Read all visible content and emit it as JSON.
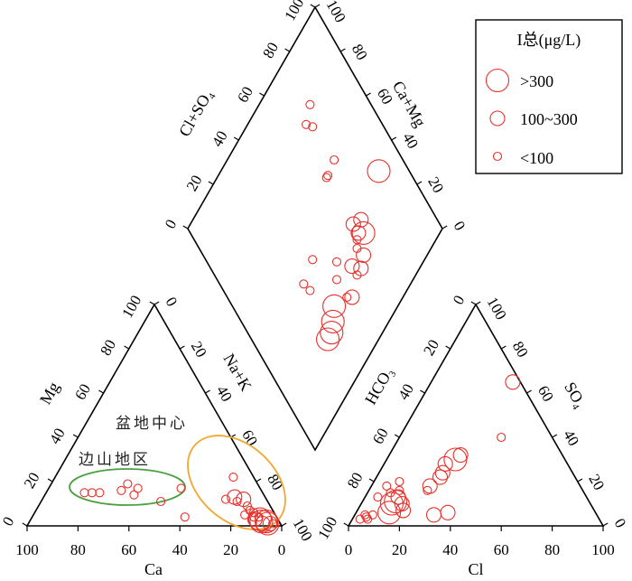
{
  "chart_data": {
    "type": "scatter",
    "subtype": "piper-diagram",
    "marker_color": "#e8302a",
    "left_triangle": {
      "left_axis_label": "Mg",
      "right_axis_label": "Na+K",
      "bottom_axis_label": "Ca",
      "ticks": [
        "0",
        "20",
        "40",
        "60",
        "80",
        "100"
      ]
    },
    "right_triangle": {
      "left_axis_label": "HCO₃",
      "right_axis_label": "SO₄",
      "bottom_axis_label": "Cl",
      "ticks": [
        "0",
        "20",
        "40",
        "60",
        "80",
        "100"
      ]
    },
    "diamond": {
      "left_axis_label": "Cl+SO₄",
      "right_axis_label": "Ca+Mg",
      "ticks": [
        "0",
        "20",
        "40",
        "60",
        "80",
        "100"
      ]
    },
    "groups": [
      {
        "name": "盆地中心",
        "ellipse_color": "#f0a830"
      },
      {
        "name": "边山地区",
        "ellipse_color": "#4aa040"
      }
    ],
    "legend": {
      "title": "I总(μg/L)",
      "items": [
        {
          "label": ">300",
          "size": "large"
        },
        {
          "label": "100~300",
          "size": "medium"
        },
        {
          "label": "<100",
          "size": "small"
        }
      ],
      "position": "top-right"
    },
    "cation_points": [
      {
        "ca": 85,
        "mg": 15,
        "size": "small"
      },
      {
        "ca": 82,
        "mg": 15,
        "size": "small"
      },
      {
        "ca": 79,
        "mg": 15,
        "size": "small"
      },
      {
        "ca": 71,
        "mg": 16,
        "size": "small"
      },
      {
        "ca": 70,
        "mg": 19,
        "size": "small"
      },
      {
        "ca": 65,
        "mg": 14,
        "size": "small"
      },
      {
        "ca": 65,
        "mg": 17,
        "size": "small"
      },
      {
        "ca": 53,
        "mg": 11,
        "size": "small"
      },
      {
        "ca": 48,
        "mg": 17,
        "size": "small"
      },
      {
        "ca": 40,
        "mg": 4,
        "size": "small"
      },
      {
        "ca": 30,
        "mg": 22,
        "size": "small"
      },
      {
        "ca": 28,
        "mg": 12,
        "size": "small"
      },
      {
        "ca": 25,
        "mg": 13,
        "size": "medium"
      },
      {
        "ca": 23,
        "mg": 11,
        "size": "small"
      },
      {
        "ca": 21,
        "mg": 12,
        "size": "medium"
      },
      {
        "ca": 18,
        "mg": 9,
        "size": "small"
      },
      {
        "ca": 17,
        "mg": 5,
        "size": "small"
      },
      {
        "ca": 16,
        "mg": 7,
        "size": "small"
      },
      {
        "ca": 14,
        "mg": 6,
        "size": "small"
      },
      {
        "ca": 13,
        "mg": 4,
        "size": "small"
      },
      {
        "ca": 12,
        "mg": 3,
        "size": "medium"
      },
      {
        "ca": 11,
        "mg": 4,
        "size": "small"
      },
      {
        "ca": 10,
        "mg": 3,
        "size": "large"
      },
      {
        "ca": 9,
        "mg": 2,
        "size": "large"
      },
      {
        "ca": 8,
        "mg": 1,
        "size": "medium"
      },
      {
        "ca": 7,
        "mg": 2,
        "size": "large"
      },
      {
        "ca": 6,
        "mg": 1,
        "size": "large"
      },
      {
        "ca": 5,
        "mg": 1,
        "size": "medium"
      },
      {
        "ca": 4,
        "mg": 1,
        "size": "small"
      }
    ],
    "anion_points": [
      {
        "cl": 32,
        "so4": 65,
        "size": "medium"
      },
      {
        "cl": 40,
        "so4": 40,
        "size": "small"
      },
      {
        "cl": 28,
        "so4": 32,
        "size": "medium"
      },
      {
        "cl": 27,
        "so4": 30,
        "size": "large"
      },
      {
        "cl": 24,
        "so4": 28,
        "size": "medium"
      },
      {
        "cl": 25,
        "so4": 24,
        "size": "medium"
      },
      {
        "cl": 25,
        "so4": 22,
        "size": "medium"
      },
      {
        "cl": 23,
        "so4": 18,
        "size": "medium"
      },
      {
        "cl": 23,
        "so4": 16,
        "size": "small"
      },
      {
        "cl": 31,
        "so4": 5,
        "size": "medium"
      },
      {
        "cl": 36,
        "so4": 6,
        "size": "medium"
      },
      {
        "cl": 10,
        "so4": 20,
        "size": "small"
      },
      {
        "cl": 12,
        "so4": 16,
        "size": "small"
      },
      {
        "cl": 9,
        "so4": 15,
        "size": "small"
      },
      {
        "cl": 6,
        "so4": 18,
        "size": "small"
      },
      {
        "cl": 5,
        "so4": 13,
        "size": "small"
      },
      {
        "cl": 13,
        "so4": 13,
        "size": "medium"
      },
      {
        "cl": 13,
        "so4": 11,
        "size": "large"
      },
      {
        "cl": 12,
        "so4": 10,
        "size": "large"
      },
      {
        "cl": 13,
        "so4": 6,
        "size": "large"
      },
      {
        "cl": 18,
        "so4": 7,
        "size": "medium"
      },
      {
        "cl": 16,
        "so4": 10,
        "size": "medium"
      },
      {
        "cl": 7,
        "so4": 5,
        "size": "small"
      },
      {
        "cl": 4,
        "so4": 5,
        "size": "small"
      },
      {
        "cl": 5,
        "so4": 4,
        "size": "small"
      },
      {
        "cl": 6,
        "so4": 3,
        "size": "small"
      },
      {
        "cl": 3,
        "so4": 3,
        "size": "small"
      }
    ],
    "diamond_points": [
      {
        "clso4": 88,
        "camg": 38,
        "size": "large"
      },
      {
        "clso4": 66,
        "camg": 36,
        "size": "medium"
      },
      {
        "clso4": 76,
        "camg": 80,
        "size": "small"
      },
      {
        "clso4": 72,
        "camg": 74,
        "size": "small"
      },
      {
        "clso4": 70,
        "camg": 77,
        "size": "small"
      },
      {
        "clso4": 73,
        "camg": 58,
        "size": "small"
      },
      {
        "clso4": 67,
        "camg": 57,
        "size": "small"
      },
      {
        "clso4": 66,
        "camg": 57,
        "size": "small"
      },
      {
        "clso4": 70,
        "camg": 34,
        "size": "medium"
      },
      {
        "clso4": 68,
        "camg": 30,
        "size": "large"
      },
      {
        "clso4": 66,
        "camg": 32,
        "size": "medium"
      },
      {
        "clso4": 64,
        "camg": 31,
        "size": "small"
      },
      {
        "clso4": 62,
        "camg": 29,
        "size": "small"
      },
      {
        "clso4": 63,
        "camg": 25,
        "size": "medium"
      },
      {
        "clso4": 56,
        "camg": 27,
        "size": "medium"
      },
      {
        "clso4": 59,
        "camg": 23,
        "size": "medium"
      },
      {
        "clso4": 56,
        "camg": 23,
        "size": "small"
      },
      {
        "clso4": 49,
        "camg": 20,
        "size": "medium"
      },
      {
        "clso4": 47,
        "camg": 22,
        "size": "small"
      },
      {
        "clso4": 47,
        "camg": 30,
        "size": "small"
      },
      {
        "clso4": 51,
        "camg": 34,
        "size": "small"
      },
      {
        "clso4": 40,
        "camg": 25,
        "size": "large"
      },
      {
        "clso4": 36,
        "camg": 22,
        "size": "large"
      },
      {
        "clso4": 33,
        "camg": 20,
        "size": "large"
      },
      {
        "clso4": 30,
        "camg": 20,
        "size": "large"
      },
      {
        "clso4": 42,
        "camg": 44,
        "size": "small"
      },
      {
        "clso4": 33,
        "camg": 42,
        "size": "small"
      },
      {
        "clso4": 34,
        "camg": 38,
        "size": "small"
      }
    ]
  }
}
